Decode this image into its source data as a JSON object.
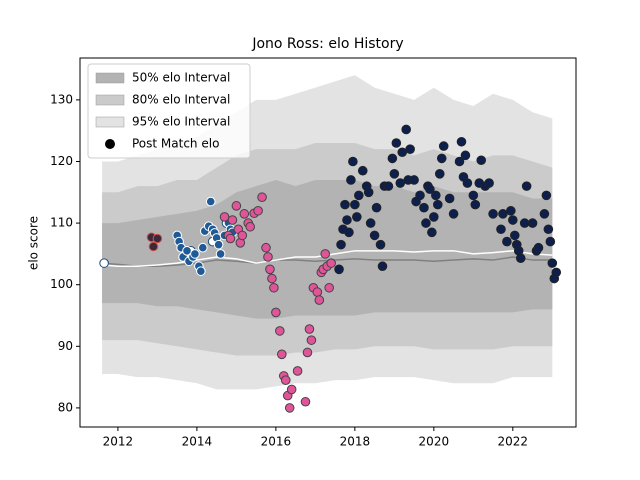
{
  "chart_data": {
    "type": "band_scatter",
    "title": "Jono Ross: elo History",
    "y_label": "elo score",
    "xlim": [
      2011.04,
      2023.6
    ],
    "ylim": [
      76.9,
      136.8
    ],
    "xticks": [
      2012,
      2014,
      2016,
      2018,
      2020,
      2022
    ],
    "yticks": [
      80,
      90,
      100,
      110,
      120,
      130
    ],
    "legend_position": "upper left",
    "band_x": [
      2011.6,
      2012,
      2012.5,
      2013,
      2013.5,
      2014,
      2014.5,
      2015,
      2015.5,
      2016,
      2016.5,
      2017,
      2017.5,
      2018,
      2018.5,
      2019,
      2019.5,
      2020,
      2020.5,
      2021,
      2021.5,
      2022,
      2022.5,
      2023
    ],
    "bands": [
      {
        "name": "95% elo Interval",
        "color": "#e3e3e3",
        "upper": [
          120,
          120,
          121,
          122,
          123,
          124,
          126,
          128,
          130,
          130,
          131,
          132,
          133,
          134,
          132,
          131,
          130,
          132,
          130,
          129,
          131,
          130,
          128,
          127
        ],
        "lower": [
          85.5,
          85.5,
          85,
          85,
          84.5,
          84,
          83,
          83,
          83,
          83.5,
          84,
          84,
          84.5,
          84.5,
          85,
          85,
          85,
          84.5,
          84,
          84,
          84,
          85,
          85,
          85
        ]
      },
      {
        "name": "80% elo Interval",
        "color": "#cbcbcb",
        "upper": [
          115,
          115,
          116,
          116,
          117,
          117,
          119,
          121,
          122,
          122,
          122,
          123,
          123,
          123,
          122,
          122,
          121,
          122,
          121,
          120,
          121,
          121,
          120,
          119
        ],
        "lower": [
          91,
          91,
          91,
          90.5,
          90,
          89.5,
          89,
          88.5,
          88.5,
          88.5,
          89,
          89,
          89.5,
          89.5,
          90,
          90,
          90,
          89.5,
          89.5,
          89.5,
          89.5,
          90,
          90,
          90
        ]
      },
      {
        "name": "50% elo Interval",
        "color": "#b3b3b3",
        "upper": [
          110,
          110,
          110.5,
          111,
          111.5,
          112,
          113,
          115,
          116,
          117,
          116,
          117,
          117,
          117,
          116,
          116,
          115,
          116,
          115,
          115,
          115,
          115,
          114,
          114
        ],
        "lower": [
          97,
          97,
          97,
          96.5,
          96.5,
          96,
          95.5,
          95,
          94.5,
          94.5,
          95,
          95,
          95,
          95,
          95.5,
          95.5,
          95.5,
          95.5,
          95.5,
          95.5,
          95.5,
          95.5,
          96,
          96
        ]
      }
    ],
    "lines": [
      {
        "color": "#808080",
        "values": [
          103.5,
          103.3,
          103,
          103,
          103.2,
          103.5,
          104,
          103.8,
          103.5,
          104,
          104,
          103.8,
          104,
          104.2,
          104,
          104,
          104,
          103.8,
          104,
          104.2,
          104,
          104.5,
          104,
          104
        ]
      },
      {
        "color": "#ffffff",
        "values": [
          103.2,
          103,
          103,
          103.2,
          103.5,
          104,
          104.5,
          104.2,
          103.5,
          104,
          104.5,
          104.5,
          105,
          105.5,
          105.5,
          105.5,
          105.3,
          105.5,
          105.5,
          105,
          105.2,
          105.5,
          105,
          104.8
        ]
      }
    ],
    "scatter": {
      "name": "Post Match elo",
      "legend_color": "#000000",
      "groups": [
        {
          "color": "#ffffff",
          "edge": "#1f4e79",
          "x": [
            2011.65,
            2013.85,
            2014.4,
            2014.75
          ],
          "values": [
            103.5,
            105.5,
            107,
            110
          ]
        },
        {
          "color": "#3a2a3a",
          "edge": "#d9534f",
          "x": [
            2012.85,
            2012.9,
            2013.0
          ],
          "values": [
            107.7,
            106.2,
            107.5
          ]
        },
        {
          "color": "#1f5a96",
          "edge": "#ffffff",
          "x": [
            2013.5,
            2013.55,
            2013.6,
            2013.65,
            2013.75,
            2013.8,
            2013.9,
            2013.95,
            2014.05,
            2014.1,
            2014.15,
            2014.2,
            2014.3,
            2014.35,
            2014.4,
            2014.45,
            2014.5,
            2014.55,
            2014.6,
            2014.7,
            2014.8,
            2014.85,
            2014.9
          ],
          "values": [
            108,
            107,
            106,
            104.5,
            105.5,
            103.8,
            104.5,
            105,
            103,
            102.2,
            106,
            108.7,
            109.5,
            113.5,
            109,
            108.4,
            107.6,
            106.5,
            105,
            108,
            110,
            109,
            108.5
          ]
        },
        {
          "color": "#e0559a",
          "edge": "#444444",
          "x": [
            2014.7,
            2014.8,
            2014.85,
            2014.9,
            2015.0,
            2015.05,
            2015.1,
            2015.15,
            2015.2,
            2015.3,
            2015.35,
            2015.45,
            2015.55,
            2015.65,
            2015.75,
            2015.8,
            2015.85,
            2015.9,
            2015.95,
            2016.0,
            2016.1,
            2016.15,
            2016.2,
            2016.25,
            2016.3,
            2016.35,
            2016.4,
            2016.55,
            2016.75,
            2016.8,
            2016.85,
            2016.9,
            2016.95,
            2017.05,
            2017.1,
            2017.15,
            2017.2,
            2017.25,
            2017.3,
            2017.35,
            2017.4
          ],
          "values": [
            111,
            108,
            107.5,
            110.5,
            112.8,
            109,
            106.8,
            108,
            111.5,
            110,
            109.4,
            111.6,
            112,
            114.2,
            106,
            104.5,
            102.5,
            101,
            99.5,
            95.5,
            92.5,
            88.7,
            85.2,
            84.5,
            82,
            80,
            83,
            86,
            81,
            89,
            92.8,
            91,
            99.5,
            98.8,
            97.5,
            102,
            102.5,
            105,
            103,
            99.5,
            103.5
          ]
        },
        {
          "color": "#0d1f4d",
          "edge": "#222222",
          "x": [
            2017.6,
            2017.65,
            2017.7,
            2017.75,
            2017.8,
            2017.85,
            2017.9,
            2017.95,
            2018.0,
            2018.05,
            2018.1,
            2018.2,
            2018.3,
            2018.35,
            2018.4,
            2018.5,
            2018.55,
            2018.65,
            2018.7,
            2018.75,
            2018.85,
            2018.95,
            2019.0,
            2019.05,
            2019.15,
            2019.2,
            2019.3,
            2019.35,
            2019.4,
            2019.5,
            2019.55,
            2019.65,
            2019.75,
            2019.8,
            2019.85,
            2019.9,
            2019.95,
            2020.0,
            2020.05,
            2020.1,
            2020.15,
            2020.2,
            2020.25,
            2020.4,
            2020.5,
            2020.65,
            2020.7,
            2020.75,
            2020.8,
            2020.85,
            2021.0,
            2021.05,
            2021.15,
            2021.2,
            2021.3,
            2021.4,
            2021.5,
            2021.7,
            2021.75,
            2021.85,
            2021.95,
            2022.0,
            2022.05,
            2022.1,
            2022.15,
            2022.2,
            2022.3,
            2022.35,
            2022.5,
            2022.6,
            2022.65,
            2022.8,
            2022.85,
            2022.9,
            2022.95,
            2023.0,
            2023.05,
            2023.1
          ],
          "values": [
            102.5,
            106.5,
            109,
            113,
            110.5,
            108.5,
            117,
            120,
            113,
            111,
            114.5,
            118.5,
            116,
            115,
            110,
            108,
            112.5,
            106.5,
            103,
            116,
            116,
            120.5,
            118,
            123,
            116.5,
            121.5,
            125.2,
            117,
            122,
            117,
            113.5,
            114.5,
            112.5,
            110,
            116,
            115.5,
            108.5,
            111,
            114.5,
            113,
            118,
            120.5,
            122.5,
            114,
            111.5,
            120,
            123.2,
            117.5,
            121,
            116.5,
            114.5,
            113,
            116.5,
            120.2,
            116,
            116.5,
            111.5,
            109,
            111.5,
            107,
            112,
            110.5,
            108,
            106.5,
            105.5,
            104.3,
            110,
            116,
            110,
            105.5,
            106,
            111.5,
            114.5,
            109,
            107,
            103.5,
            101,
            102
          ]
        }
      ]
    }
  }
}
